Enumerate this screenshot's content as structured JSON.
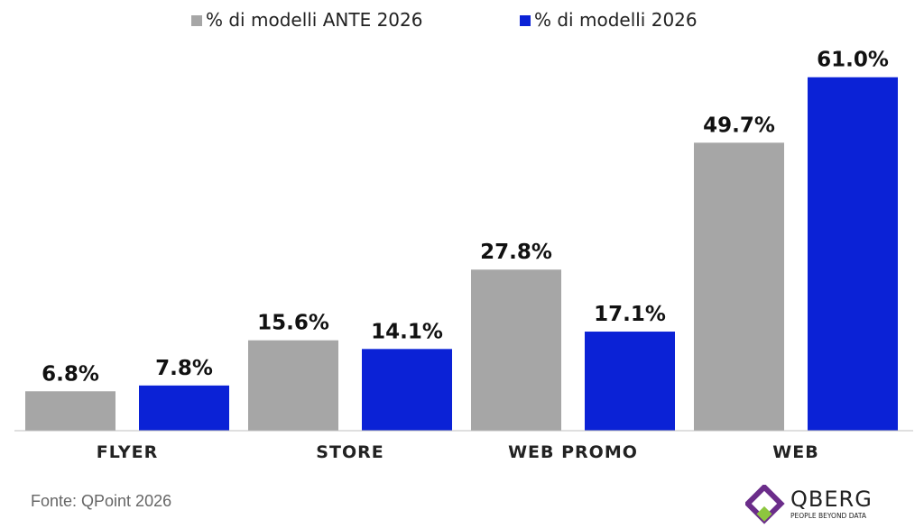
{
  "chart_data": {
    "type": "bar",
    "categories": [
      "FLYER",
      "STORE",
      "WEB PROMO",
      "WEB"
    ],
    "series": [
      {
        "name": "% di modelli ANTE 2026",
        "values": [
          6.8,
          15.6,
          27.8,
          49.7
        ],
        "labels": [
          "6.8%",
          "15.6%",
          "27.8%",
          "49.7%"
        ],
        "color": "#a6a6a6"
      },
      {
        "name": "% di modelli 2026",
        "values": [
          7.8,
          14.1,
          17.1,
          61.0
        ],
        "labels": [
          "7.8%",
          "14.1%",
          "17.1%",
          "61.0%"
        ],
        "color": "#0b22d6"
      }
    ],
    "ylim": [
      0,
      65
    ],
    "grid": false,
    "legend": "top-center"
  },
  "source": "Fonte: QPoint 2026",
  "logo": {
    "name": "QBERG",
    "tagline": "PEOPLE BEYOND DATA",
    "colors": [
      "#6b2d8a",
      "#8dc63f"
    ]
  }
}
